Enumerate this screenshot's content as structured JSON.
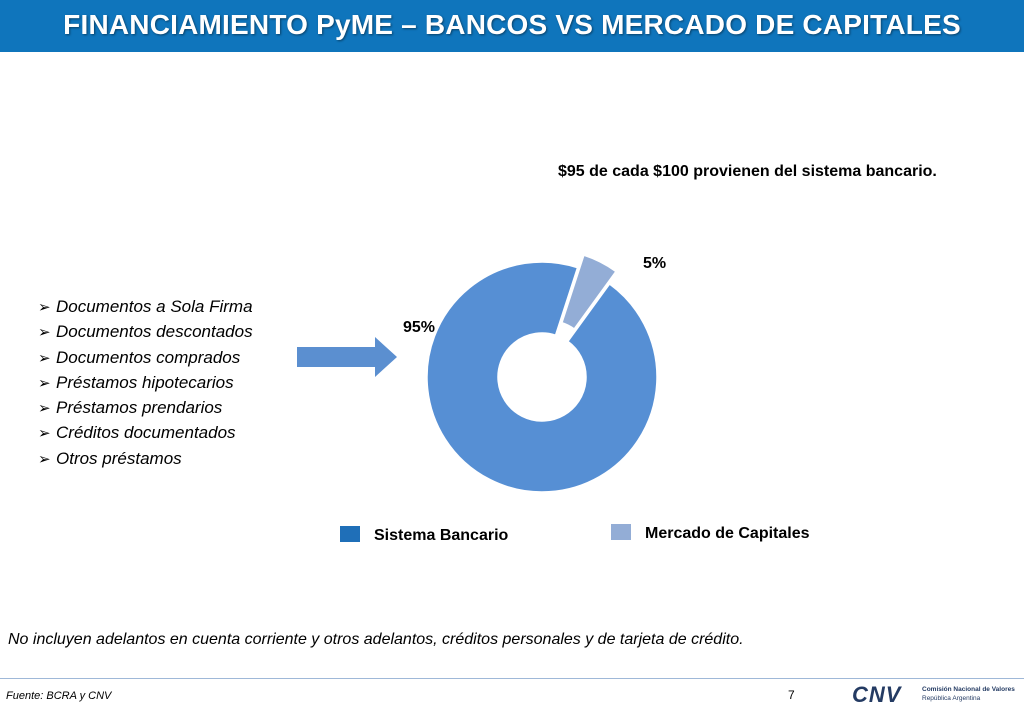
{
  "header": {
    "title": "FINANCIAMIENTO PyME – BANCOS VS MERCADO DE CAPITALES"
  },
  "list": {
    "bullet_glyph": "➢",
    "items": [
      "Documentos a Sola Firma",
      "Documentos descontados",
      "Documentos comprados",
      "Préstamos hipotecarios",
      "Préstamos prendarios",
      "Créditos documentados",
      "Otros préstamos"
    ]
  },
  "chart_data": {
    "type": "pie",
    "subtype": "doughnut",
    "title": "$95 de cada $100 provienen del sistema bancario.",
    "labels": [
      "Sistema Bancario",
      "Mercado de Capitales"
    ],
    "values": [
      95,
      5
    ],
    "data_labels": [
      "95%",
      "5%"
    ],
    "colors": [
      "#568fd4",
      "#93add6"
    ],
    "legend_colors": [
      "#1f6fb8",
      "#93add6"
    ],
    "legend": "bottom",
    "exploded": "Mercado de Capitales"
  },
  "note": "No incluyen adelantos en cuenta corriente y otros adelantos, créditos personales y de tarjeta de crédito.",
  "footer": {
    "source": "Fuente: BCRA y CNV",
    "page_number": "7",
    "logo_mark": "CNV",
    "logo_line1": "Comisión Nacional de Valores",
    "logo_line2": "República Argentina"
  },
  "colors": {
    "header_bg": "#0f75bc",
    "arrow": "#5b8fd0",
    "logo": "#243b63"
  }
}
